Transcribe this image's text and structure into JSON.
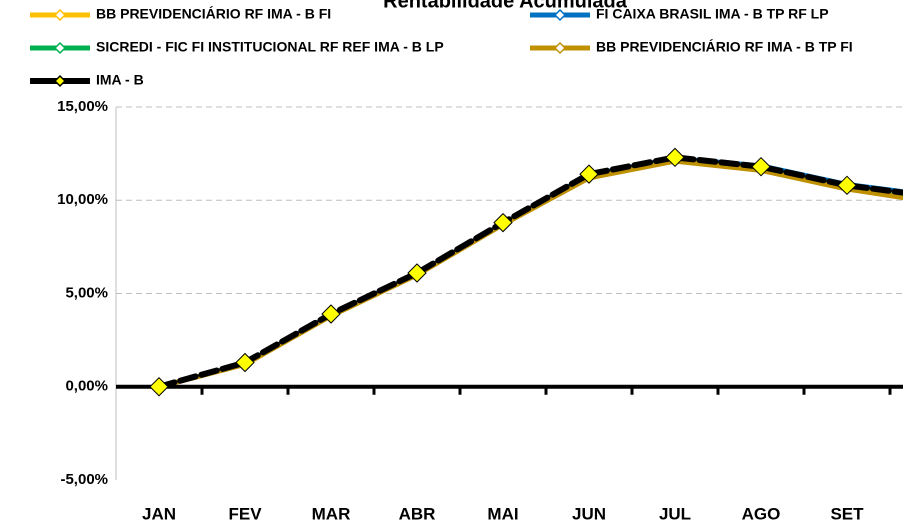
{
  "chart_data": {
    "type": "line",
    "title": "Rentabilidade Acumulada",
    "categories": [
      "JAN",
      "FEV",
      "MAR",
      "ABR",
      "MAI",
      "JUN",
      "JUL",
      "AGO",
      "SET",
      null
    ],
    "series": [
      {
        "name": "BB PREVIDENCIÁRIO RF IMA - B FI",
        "color": "#ffc000",
        "values": [
          0,
          1.2,
          3.8,
          6.0,
          8.7,
          11.3,
          12.2,
          11.7,
          10.7,
          10.0
        ]
      },
      {
        "name": "FI CAIXA BRASIL IMA - B TP RF LP",
        "color": "#0070c0",
        "values": [
          0,
          1.3,
          3.9,
          6.1,
          8.8,
          11.4,
          12.3,
          11.9,
          10.9,
          10.3
        ]
      },
      {
        "name": "SICREDI - FIC FI INSTITUCIONAL RF REF IMA - B LP",
        "color": "#00b050",
        "values": [
          0,
          1.2,
          3.8,
          6.0,
          8.7,
          11.3,
          12.2,
          11.7,
          10.7,
          10.0
        ]
      },
      {
        "name": "BB PREVIDENCIÁRIO RF IMA - B TP FI",
        "color": "#bf9000",
        "values": [
          0,
          1.2,
          3.8,
          6.0,
          8.7,
          11.2,
          12.1,
          11.6,
          10.6,
          9.9
        ]
      },
      {
        "name": "IMA - B",
        "color": "#000000",
        "values": [
          0,
          1.3,
          3.9,
          6.1,
          8.8,
          11.4,
          12.3,
          11.8,
          10.8,
          10.2
        ]
      }
    ],
    "ylim": [
      -5,
      15
    ],
    "yticks": [
      {
        "value": -5,
        "label": "-5,00%"
      },
      {
        "value": 0,
        "label": "0,00%"
      },
      {
        "value": 5,
        "label": "5,00%"
      },
      {
        "value": 10,
        "label": "10,00%"
      },
      {
        "value": 15,
        "label": "15,00%"
      }
    ],
    "grid": true,
    "legend": "top"
  }
}
